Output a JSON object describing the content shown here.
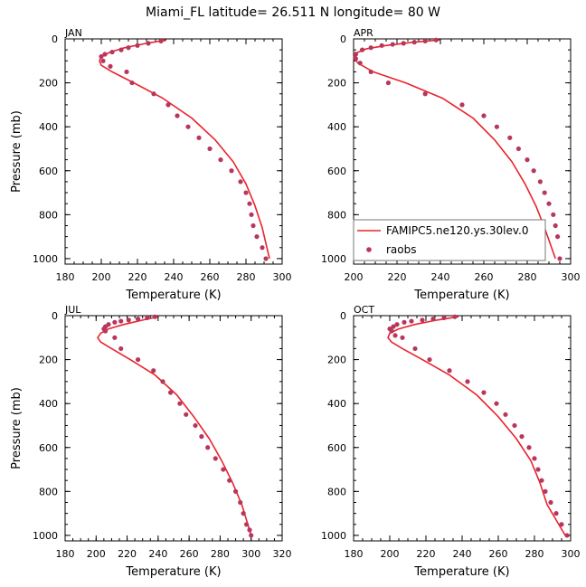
{
  "title": "Miami_FL  latitude= 26.511 N longitude= 80 W",
  "colors": {
    "model_line": "#e8242c",
    "obs_marker": "#b8365e",
    "axis": "#000000",
    "legend_border": "#777777"
  },
  "chart_data": [
    {
      "type": "line",
      "panel_label": "JAN",
      "xlabel": "Temperature (K)",
      "ylabel": "Pressure (mb)",
      "xlim": [
        180,
        300
      ],
      "ylim": [
        1025,
        0
      ],
      "xticks": [
        180,
        200,
        220,
        240,
        260,
        280,
        300
      ],
      "yticks": [
        0,
        200,
        400,
        600,
        800,
        1000
      ],
      "series": [
        {
          "kind": "line",
          "x": [
            236,
            225,
            213,
            205,
            200,
            199,
            200,
            206,
            218,
            234,
            250,
            263,
            273,
            280,
            285,
            289,
            293
          ],
          "y": [
            5,
            20,
            40,
            60,
            80,
            100,
            120,
            150,
            200,
            270,
            360,
            460,
            560,
            660,
            760,
            860,
            1000
          ]
        },
        {
          "name": "raobs",
          "kind": "scatter",
          "x": [
            233,
            226,
            220,
            215,
            211,
            206,
            202,
            200,
            201,
            205,
            214,
            217,
            229,
            237,
            242,
            248,
            254,
            260,
            266,
            272,
            277,
            280,
            282,
            283,
            284,
            286,
            289,
            291
          ],
          "y": [
            10,
            20,
            30,
            40,
            50,
            60,
            70,
            80,
            100,
            125,
            150,
            200,
            250,
            300,
            350,
            400,
            450,
            500,
            550,
            600,
            650,
            700,
            750,
            800,
            850,
            900,
            950,
            1000
          ]
        }
      ]
    },
    {
      "type": "line",
      "panel_label": "APR",
      "xlabel": "Temperature (K)",
      "ylabel": "",
      "xlim": [
        200,
        300
      ],
      "ylim": [
        1025,
        0
      ],
      "xticks": [
        200,
        220,
        240,
        260,
        280,
        300
      ],
      "yticks": [
        0,
        200,
        400,
        600,
        800,
        1000
      ],
      "legend": {
        "position": "lower-left",
        "entries": [
          "FAMIPC5.ne120.ys.30lev.0",
          "raobs"
        ]
      },
      "series": [
        {
          "name": "FAMIPC5.ne120.ys.30lev.0",
          "kind": "line",
          "x": [
            240,
            228,
            215,
            206,
            201,
            200,
            202,
            209,
            224,
            241,
            255,
            265,
            273,
            279,
            284,
            288,
            293
          ],
          "y": [
            5,
            15,
            30,
            45,
            65,
            85,
            110,
            150,
            200,
            270,
            360,
            460,
            560,
            660,
            760,
            860,
            1000
          ]
        },
        {
          "name": "raobs",
          "kind": "scatter",
          "x": [
            238,
            233,
            228,
            223,
            218,
            213,
            208,
            204,
            201,
            201,
            203,
            208,
            216,
            233,
            250,
            260,
            266,
            272,
            276,
            280,
            283,
            286,
            288,
            290,
            292,
            293,
            294,
            295
          ],
          "y": [
            5,
            10,
            15,
            20,
            25,
            30,
            40,
            50,
            70,
            90,
            110,
            150,
            200,
            250,
            300,
            350,
            400,
            450,
            500,
            550,
            600,
            650,
            700,
            750,
            800,
            850,
            900,
            1000
          ]
        }
      ]
    },
    {
      "type": "line",
      "panel_label": "JUL",
      "xlabel": "Temperature (K)",
      "ylabel": "Pressure (mb)",
      "xlim": [
        180,
        320
      ],
      "ylim": [
        1025,
        0
      ],
      "xticks": [
        180,
        200,
        220,
        240,
        260,
        280,
        300,
        320
      ],
      "yticks": [
        0,
        200,
        400,
        600,
        800,
        1000
      ],
      "series": [
        {
          "kind": "line",
          "x": [
            240,
            230,
            218,
            208,
            203,
            201,
            203,
            210,
            222,
            238,
            252,
            263,
            273,
            281,
            288,
            294,
            300
          ],
          "y": [
            5,
            20,
            40,
            60,
            80,
            100,
            120,
            150,
            200,
            270,
            360,
            460,
            560,
            660,
            760,
            860,
            1000
          ]
        },
        {
          "name": "raobs",
          "kind": "scatter",
          "x": [
            238,
            233,
            227,
            221,
            216,
            212,
            208,
            206,
            205,
            206,
            212,
            216,
            227,
            237,
            243,
            248,
            254,
            258,
            264,
            268,
            272,
            277,
            282,
            286,
            290,
            293,
            295,
            297,
            299,
            300
          ],
          "y": [
            5,
            10,
            15,
            20,
            25,
            30,
            40,
            50,
            60,
            70,
            100,
            150,
            200,
            250,
            300,
            350,
            400,
            450,
            500,
            550,
            600,
            650,
            700,
            750,
            800,
            850,
            900,
            950,
            975,
            1000
          ]
        }
      ]
    },
    {
      "type": "line",
      "panel_label": "OCT",
      "xlabel": "Temperature (K)",
      "ylabel": "",
      "xlim": [
        180,
        300
      ],
      "ylim": [
        1025,
        0
      ],
      "xticks": [
        180,
        200,
        220,
        240,
        260,
        280,
        300
      ],
      "yticks": [
        0,
        200,
        400,
        600,
        800,
        1000
      ],
      "series": [
        {
          "kind": "line",
          "x": [
            238,
            226,
            214,
            205,
            200,
            199,
            201,
            207,
            218,
            233,
            248,
            260,
            270,
            278,
            283,
            287,
            297
          ],
          "y": [
            5,
            20,
            40,
            60,
            80,
            100,
            120,
            150,
            200,
            270,
            360,
            460,
            560,
            660,
            760,
            860,
            1000
          ]
        },
        {
          "name": "raobs",
          "kind": "scatter",
          "x": [
            236,
            230,
            224,
            218,
            212,
            208,
            204,
            202,
            200,
            201,
            203,
            207,
            214,
            222,
            233,
            243,
            252,
            259,
            264,
            269,
            273,
            277,
            280,
            282,
            284,
            286,
            289,
            292,
            295,
            298
          ],
          "y": [
            5,
            10,
            15,
            20,
            25,
            30,
            40,
            50,
            60,
            70,
            90,
            100,
            150,
            200,
            250,
            300,
            350,
            400,
            450,
            500,
            550,
            600,
            650,
            700,
            750,
            800,
            850,
            900,
            950,
            1000
          ]
        }
      ]
    }
  ]
}
